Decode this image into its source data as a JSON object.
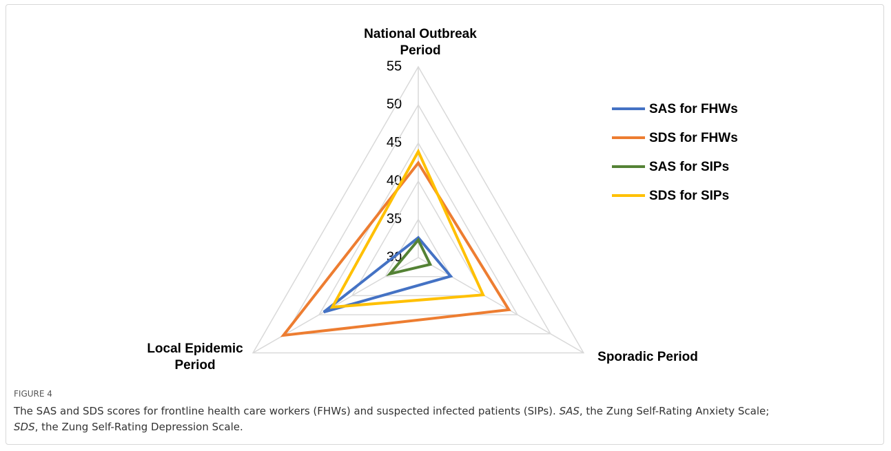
{
  "chart_data": {
    "type": "radar",
    "categories": [
      "National Outbreak Period",
      "Sporadic Period",
      "Local Epidemic Period"
    ],
    "rlim": [
      30,
      55
    ],
    "rticks": [
      30,
      35,
      40,
      45,
      50,
      55
    ],
    "grid": true,
    "legend": "right",
    "series": [
      {
        "name": "SAS for FHWs",
        "color": "#4472c4",
        "values": [
          32.6,
          34.9,
          44.3
        ]
      },
      {
        "name": "SDS for FHWs",
        "color": "#ed7d31",
        "values": [
          42.4,
          43.7,
          50.4
        ]
      },
      {
        "name": "SAS for SIPs",
        "color": "#548235",
        "values": [
          32.3,
          31.8,
          34.3
        ]
      },
      {
        "name": "SDS for SIPs",
        "color": "#ffc000",
        "values": [
          43.9,
          39.8,
          43.0
        ]
      }
    ]
  },
  "figure": {
    "label": "FIGURE 4",
    "caption": [
      "The SAS and SDS scores for frontline health care workers (FHWs) and suspected infected patients (SIPs). ",
      "SAS",
      ", the Zung Self-Rating Anxiety Scale;",
      "SDS",
      ", the Zung Self-Rating Depression Scale."
    ]
  }
}
